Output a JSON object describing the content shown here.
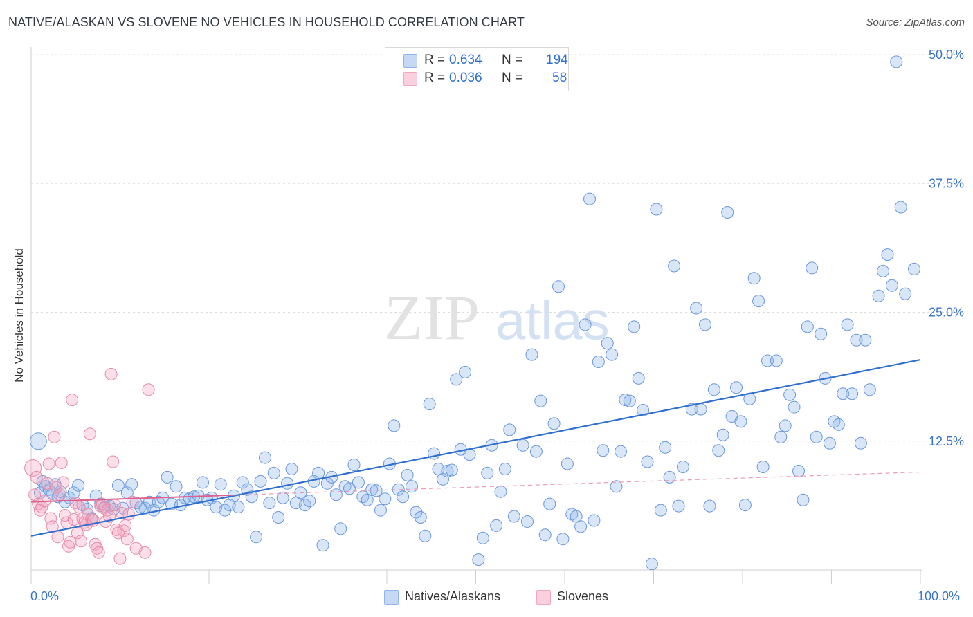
{
  "header": {
    "title": "NATIVE/ALASKAN VS SLOVENE NO VEHICLES IN HOUSEHOLD CORRELATION CHART",
    "source": "Source: ZipAtlas.com"
  },
  "watermark": {
    "part1": "ZIP",
    "part2": "atlas"
  },
  "legend": {
    "r_label": "R =",
    "n_label": "N =",
    "rows": [
      {
        "series": "Natives/Alaskans",
        "r": "0.634",
        "n": "194",
        "color": "#8fb6ec"
      },
      {
        "series": "Slovenes",
        "r": "0.036",
        "n": "58",
        "color": "#f4a6c0"
      }
    ]
  },
  "chart_data": {
    "type": "scatter",
    "title": "NATIVE/ALASKAN VS SLOVENE NO VEHICLES IN HOUSEHOLD CORRELATION CHART",
    "xlabel": "",
    "ylabel": "No Vehicles in Household",
    "xlim": [
      0,
      100
    ],
    "ylim": [
      0,
      50
    ],
    "x_tick_labels": [
      "0.0%",
      "100.0%"
    ],
    "y_ticks": [
      12.5,
      25.0,
      37.5,
      50.0
    ],
    "y_tick_labels": [
      "12.5%",
      "25.0%",
      "37.5%",
      "50.0%"
    ],
    "grid": true,
    "legend_position": "bottom-center",
    "series": [
      {
        "name": "Natives/Alaskans",
        "color": "#8fb6ec",
        "edge": "#6a98dc",
        "trend": {
          "x": [
            0,
            100
          ],
          "y": [
            3.3,
            20.4
          ],
          "style": "solid",
          "color": "#2f6fd0"
        },
        "points": [
          [
            0.8,
            12.5
          ],
          [
            1,
            7.5
          ],
          [
            1.3,
            8.6
          ],
          [
            1.6,
            8.1
          ],
          [
            2,
            7.8
          ],
          [
            2.4,
            7.4
          ],
          [
            2.7,
            8.3
          ],
          [
            3,
            7.1
          ],
          [
            3.3,
            7.6
          ],
          [
            3.8,
            6.6
          ],
          [
            4.3,
            7
          ],
          [
            4.8,
            7.5
          ],
          [
            5.3,
            8.2
          ],
          [
            5.8,
            6.3
          ],
          [
            6.3,
            5.9
          ],
          [
            6.8,
            5
          ],
          [
            7.3,
            7.2
          ],
          [
            7.8,
            6.4
          ],
          [
            8.3,
            6.1
          ],
          [
            8.8,
            6.2
          ],
          [
            9.3,
            5.9
          ],
          [
            9.8,
            8.2
          ],
          [
            10.3,
            6
          ],
          [
            10.8,
            7.5
          ],
          [
            11.3,
            8.3
          ],
          [
            11.8,
            6.5
          ],
          [
            12.3,
            6.1
          ],
          [
            12.8,
            6
          ],
          [
            13.3,
            6.6
          ],
          [
            13.8,
            5.8
          ],
          [
            14.3,
            6.6
          ],
          [
            14.8,
            7
          ],
          [
            15.3,
            9
          ],
          [
            15.8,
            6.4
          ],
          [
            16.3,
            8.1
          ],
          [
            16.8,
            6.3
          ],
          [
            17.3,
            7
          ],
          [
            17.8,
            6.9
          ],
          [
            18.3,
            7.1
          ],
          [
            18.8,
            7.2
          ],
          [
            19.3,
            8.5
          ],
          [
            19.8,
            6.8
          ],
          [
            20.3,
            7
          ],
          [
            20.8,
            6.1
          ],
          [
            21.3,
            8.3
          ],
          [
            21.8,
            5.8
          ],
          [
            22.3,
            6.3
          ],
          [
            22.8,
            7.2
          ],
          [
            23.3,
            6.1
          ],
          [
            23.8,
            8.5
          ],
          [
            24.3,
            7.8
          ],
          [
            24.8,
            7.1
          ],
          [
            25.3,
            3.2
          ],
          [
            25.8,
            8.6
          ],
          [
            26.3,
            10.9
          ],
          [
            26.8,
            6.5
          ],
          [
            27.3,
            9.4
          ],
          [
            27.8,
            5.1
          ],
          [
            28.3,
            7
          ],
          [
            28.8,
            8.4
          ],
          [
            29.3,
            9.8
          ],
          [
            29.8,
            6.5
          ],
          [
            30.3,
            7.5
          ],
          [
            30.8,
            6.3
          ],
          [
            31.3,
            6.7
          ],
          [
            31.8,
            8.6
          ],
          [
            32.3,
            9.4
          ],
          [
            32.8,
            2.4
          ],
          [
            33.3,
            8.4
          ],
          [
            33.8,
            9
          ],
          [
            34.3,
            7.3
          ],
          [
            34.8,
            4
          ],
          [
            35.3,
            8.1
          ],
          [
            35.8,
            7.9
          ],
          [
            36.3,
            10.2
          ],
          [
            36.8,
            8.5
          ],
          [
            37.3,
            7.1
          ],
          [
            37.8,
            6.8
          ],
          [
            38.3,
            7.8
          ],
          [
            38.8,
            7.7
          ],
          [
            39.3,
            5.8
          ],
          [
            39.8,
            6.9
          ],
          [
            40.3,
            10.3
          ],
          [
            40.8,
            14
          ],
          [
            41.3,
            7.8
          ],
          [
            41.8,
            7.1
          ],
          [
            42.3,
            9.2
          ],
          [
            42.8,
            8.1
          ],
          [
            43.3,
            5.6
          ],
          [
            43.8,
            5.1
          ],
          [
            44.3,
            3.3
          ],
          [
            44.8,
            16.1
          ],
          [
            45.3,
            11.3
          ],
          [
            45.8,
            9.8
          ],
          [
            46.3,
            8.8
          ],
          [
            46.8,
            9.6
          ],
          [
            47.3,
            9.7
          ],
          [
            47.8,
            18.5
          ],
          [
            48.3,
            11.7
          ],
          [
            48.8,
            19.2
          ],
          [
            49.3,
            11.2
          ],
          [
            50.3,
            1
          ],
          [
            50.8,
            3.1
          ],
          [
            51.3,
            9.4
          ],
          [
            51.8,
            12.1
          ],
          [
            52.3,
            4.3
          ],
          [
            52.8,
            7.6
          ],
          [
            53.3,
            9.8
          ],
          [
            53.8,
            13.6
          ],
          [
            54.3,
            5.2
          ],
          [
            55.3,
            12.1
          ],
          [
            55.8,
            4.7
          ],
          [
            56.3,
            20.9
          ],
          [
            56.8,
            11.5
          ],
          [
            57.3,
            16.4
          ],
          [
            57.8,
            3.4
          ],
          [
            58.3,
            6.4
          ],
          [
            58.8,
            14.2
          ],
          [
            59.3,
            27.5
          ],
          [
            59.8,
            3
          ],
          [
            60.3,
            10.3
          ],
          [
            60.8,
            5.4
          ],
          [
            61.3,
            5.2
          ],
          [
            61.8,
            4.2
          ],
          [
            62.3,
            23.8
          ],
          [
            62.8,
            36
          ],
          [
            63.3,
            4.8
          ],
          [
            63.8,
            20.2
          ],
          [
            64.3,
            11.6
          ],
          [
            64.8,
            22
          ],
          [
            65.3,
            20.9
          ],
          [
            65.8,
            8.1
          ],
          [
            66.3,
            11.5
          ],
          [
            66.8,
            16.5
          ],
          [
            67.3,
            16.4
          ],
          [
            67.8,
            23.6
          ],
          [
            68.3,
            18.6
          ],
          [
            68.8,
            15.5
          ],
          [
            69.3,
            10.5
          ],
          [
            69.8,
            0.6
          ],
          [
            70.3,
            35
          ],
          [
            70.8,
            5.8
          ],
          [
            71.3,
            11.9
          ],
          [
            71.8,
            9
          ],
          [
            72.3,
            29.5
          ],
          [
            72.8,
            6.2
          ],
          [
            73.3,
            10
          ],
          [
            74.3,
            15.6
          ],
          [
            74.8,
            25.4
          ],
          [
            75.3,
            15.6
          ],
          [
            75.8,
            23.8
          ],
          [
            76.3,
            6.2
          ],
          [
            76.8,
            17.5
          ],
          [
            77.3,
            11.6
          ],
          [
            77.8,
            13.1
          ],
          [
            78.3,
            34.7
          ],
          [
            78.8,
            14.9
          ],
          [
            79.3,
            17.7
          ],
          [
            79.8,
            14.4
          ],
          [
            80.3,
            6.3
          ],
          [
            80.8,
            16.6
          ],
          [
            81.3,
            28.3
          ],
          [
            81.8,
            26.1
          ],
          [
            82.3,
            10
          ],
          [
            82.8,
            20.3
          ],
          [
            83.8,
            20.3
          ],
          [
            84.3,
            12.9
          ],
          [
            84.8,
            14
          ],
          [
            85.3,
            17
          ],
          [
            85.8,
            15.8
          ],
          [
            86.3,
            9.6
          ],
          [
            86.8,
            6.8
          ],
          [
            87.3,
            23.6
          ],
          [
            87.8,
            29.3
          ],
          [
            88.3,
            12.9
          ],
          [
            88.8,
            22.9
          ],
          [
            89.3,
            18.6
          ],
          [
            89.8,
            12.3
          ],
          [
            90.3,
            14.4
          ],
          [
            90.8,
            14.1
          ],
          [
            91.3,
            17.1
          ],
          [
            91.8,
            23.8
          ],
          [
            92.3,
            17.1
          ],
          [
            92.8,
            22.3
          ],
          [
            93.3,
            12.3
          ],
          [
            93.8,
            22.3
          ],
          [
            94.3,
            17.5
          ],
          [
            95.3,
            26.6
          ],
          [
            95.8,
            29
          ],
          [
            96.3,
            30.6
          ],
          [
            96.8,
            27.6
          ],
          [
            97.3,
            49.3
          ],
          [
            97.8,
            35.2
          ],
          [
            98.3,
            26.8
          ],
          [
            99.3,
            29.2
          ]
        ]
      },
      {
        "name": "Slovenes",
        "color": "#f4a6c0",
        "edge": "#e58aaa",
        "trend": {
          "x": [
            0,
            100
          ],
          "y": [
            6.6,
            9.5
          ],
          "x_solid_end": 22.5,
          "style": "solid-then-dashed",
          "color": "#e0608c"
        },
        "points": [
          [
            0.2,
            9.9
          ],
          [
            0.4,
            7.3
          ],
          [
            0.6,
            9
          ],
          [
            0.8,
            6.4
          ],
          [
            1,
            5.8
          ],
          [
            1.2,
            6.1
          ],
          [
            1.5,
            6.7
          ],
          [
            1.8,
            8.4
          ],
          [
            2,
            10.3
          ],
          [
            2.2,
            5
          ],
          [
            2.4,
            4.2
          ],
          [
            2.6,
            12.9
          ],
          [
            2.8,
            8
          ],
          [
            3,
            3.2
          ],
          [
            3.2,
            7.3
          ],
          [
            3.4,
            10.4
          ],
          [
            3.6,
            8.5
          ],
          [
            3.8,
            5.3
          ],
          [
            4,
            4.6
          ],
          [
            4.2,
            2.3
          ],
          [
            4.4,
            2.7
          ],
          [
            4.6,
            16.5
          ],
          [
            4.8,
            4.9
          ],
          [
            5,
            6.5
          ],
          [
            5.2,
            3.6
          ],
          [
            5.4,
            6.1
          ],
          [
            5.6,
            2.8
          ],
          [
            5.8,
            5
          ],
          [
            6,
            4.6
          ],
          [
            6.2,
            4.4
          ],
          [
            6.4,
            5.4
          ],
          [
            6.6,
            13.2
          ],
          [
            6.8,
            4.9
          ],
          [
            7,
            4.8
          ],
          [
            7.2,
            2.5
          ],
          [
            7.4,
            2.1
          ],
          [
            7.6,
            1.7
          ],
          [
            7.8,
            6.2
          ],
          [
            8,
            6.4
          ],
          [
            8.2,
            6
          ],
          [
            8.4,
            4.7
          ],
          [
            8.6,
            5.8
          ],
          [
            8.8,
            5.2
          ],
          [
            9,
            19
          ],
          [
            9.2,
            10.5
          ],
          [
            9.4,
            6.3
          ],
          [
            9.6,
            3.9
          ],
          [
            9.8,
            3.6
          ],
          [
            10,
            1.1
          ],
          [
            10.2,
            5.5
          ],
          [
            10.4,
            3.8
          ],
          [
            10.6,
            4.3
          ],
          [
            10.8,
            3
          ],
          [
            11,
            5.4
          ],
          [
            11.4,
            6.6
          ],
          [
            11.8,
            2.1
          ],
          [
            12.8,
            1.7
          ],
          [
            13.2,
            17.5
          ]
        ]
      }
    ]
  }
}
